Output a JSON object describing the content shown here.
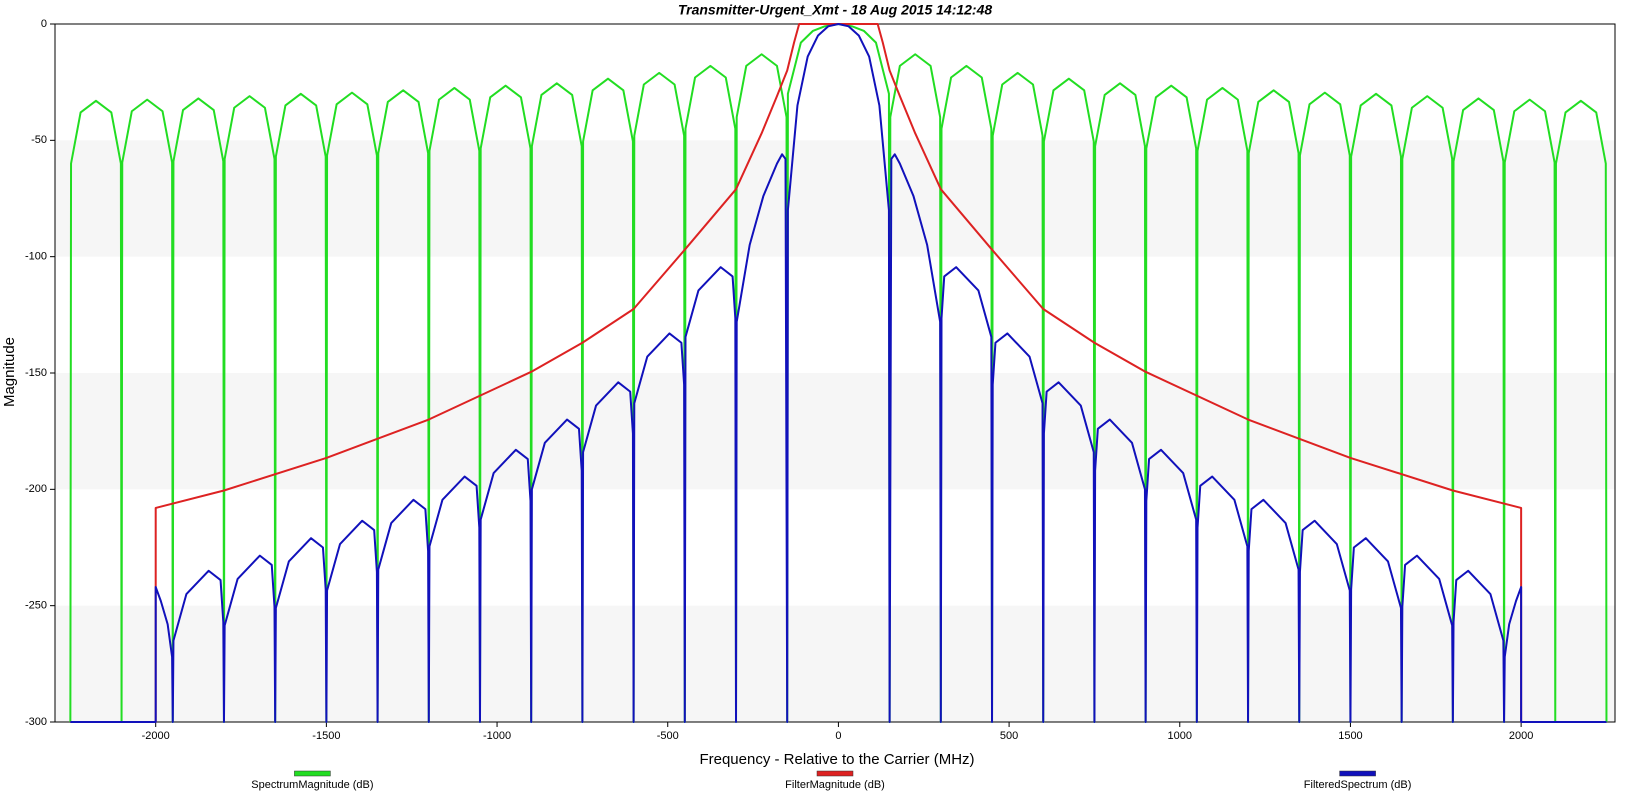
{
  "chart_data": {
    "type": "line",
    "title": "Transmitter-Urgent_Xmt - 18 Aug 2015 14:12:48",
    "x_label": "Frequency - Relative to the Carrier (MHz)",
    "y_label": "Magnitude",
    "xlim": [
      -2295,
      2275
    ],
    "ylim": [
      -300,
      0
    ],
    "xticks": [
      -2000,
      -1500,
      -1000,
      -500,
      0,
      500,
      1000,
      1500,
      2000
    ],
    "yticks": [
      0,
      -50,
      -100,
      -150,
      -200,
      -250,
      -300
    ],
    "grid": "bands",
    "legend": "bottom",
    "series": [
      {
        "name": "SpectrumMagnitude (dB)",
        "color": "#22dd22",
        "x": [
          -2250,
          -2248,
          -2220,
          -2175,
          -2130,
          -2102,
          -2100,
          -2098,
          -2070,
          -2025,
          -1980,
          -1952,
          -1950,
          -1948,
          -1920,
          -1875,
          -1830,
          -1802,
          -1800,
          -1798,
          -1770,
          -1725,
          -1680,
          -1652,
          -1650,
          -1648,
          -1620,
          -1575,
          -1530,
          -1502,
          -1500,
          -1498,
          -1470,
          -1425,
          -1380,
          -1352,
          -1350,
          -1348,
          -1320,
          -1275,
          -1230,
          -1202,
          -1200,
          -1198,
          -1170,
          -1125,
          -1080,
          -1052,
          -1050,
          -1048,
          -1020,
          -975,
          -930,
          -902,
          -900,
          -898,
          -870,
          -825,
          -780,
          -752,
          -750,
          -748,
          -720,
          -675,
          -630,
          -602,
          -600,
          -598,
          -570,
          -525,
          -480,
          -452,
          -450,
          -448,
          -420,
          -375,
          -330,
          -302,
          -300,
          -298,
          -270,
          -225,
          -180,
          -152,
          -150,
          -148,
          -110,
          -75,
          -40,
          0,
          40,
          75,
          110,
          148,
          150,
          152,
          180,
          225,
          270,
          298,
          300,
          302,
          330,
          375,
          420,
          448,
          450,
          452,
          480,
          525,
          570,
          598,
          600,
          602,
          630,
          675,
          720,
          748,
          750,
          752,
          780,
          825,
          870,
          898,
          900,
          902,
          930,
          975,
          1020,
          1048,
          1050,
          1052,
          1080,
          1125,
          1170,
          1198,
          1200,
          1202,
          1230,
          1275,
          1320,
          1348,
          1350,
          1352,
          1380,
          1425,
          1470,
          1498,
          1500,
          1502,
          1530,
          1575,
          1620,
          1648,
          1650,
          1652,
          1680,
          1725,
          1770,
          1798,
          1800,
          1802,
          1830,
          1875,
          1920,
          1948,
          1950,
          1952,
          1980,
          2025,
          2070,
          2098,
          2100,
          2102,
          2130,
          2175,
          2220,
          2248,
          2250
        ],
        "values": [
          -300,
          -60,
          -38,
          -33,
          -38,
          -60,
          -300,
          -59.5,
          -37.5,
          -32.5,
          -37.5,
          -59.5,
          -300,
          -59,
          -37,
          -32,
          -37,
          -59,
          -300,
          -58,
          -36,
          -31,
          -36,
          -58,
          -300,
          -57,
          -35,
          -30,
          -35,
          -57,
          -300,
          -56.5,
          -34.5,
          -29.5,
          -34.5,
          -56.5,
          -300,
          -55.5,
          -33.5,
          -28.5,
          -33.5,
          -55.5,
          -300,
          -54.5,
          -32.5,
          -27.5,
          -32.5,
          -54.5,
          -300,
          -53.5,
          -31.5,
          -26.5,
          -31.5,
          -53.5,
          -300,
          -52.5,
          -30.5,
          -25.5,
          -30.5,
          -52.5,
          -300,
          -50.5,
          -28.5,
          -23.5,
          -28.5,
          -50.5,
          -300,
          -48,
          -26,
          -21,
          -26,
          -48,
          -300,
          -45,
          -23,
          -18,
          -23,
          -45,
          -300,
          -40,
          -18,
          -13,
          -18,
          -40,
          -300,
          -30,
          -8,
          -3,
          -1,
          0,
          -1,
          -3,
          -8,
          -30,
          -300,
          -40,
          -18,
          -13,
          -18,
          -40,
          -300,
          -45,
          -23,
          -18,
          -23,
          -45,
          -300,
          -48,
          -26,
          -21,
          -26,
          -48,
          -300,
          -50.5,
          -28.5,
          -23.5,
          -28.5,
          -50.5,
          -300,
          -52.5,
          -30.5,
          -25.5,
          -30.5,
          -52.5,
          -300,
          -53.5,
          -31.5,
          -26.5,
          -31.5,
          -53.5,
          -300,
          -54.5,
          -32.5,
          -27.5,
          -32.5,
          -54.5,
          -300,
          -55.5,
          -33.5,
          -28.5,
          -33.5,
          -55.5,
          -300,
          -56.5,
          -34.5,
          -29.5,
          -34.5,
          -56.5,
          -300,
          -57,
          -35,
          -30,
          -35,
          -57,
          -300,
          -58,
          -36,
          -31,
          -36,
          -58,
          -300,
          -59,
          -37,
          -32,
          -37,
          -59,
          -300,
          -59.5,
          -37.5,
          -32.5,
          -37.5,
          -59.5,
          -300,
          -60,
          -38,
          -33,
          -38,
          -60,
          -300
        ]
      },
      {
        "name": "FilterMagnitude (dB)",
        "color": "#dd2222",
        "x": [
          -2250,
          -2000,
          -2000,
          -1800,
          -1500,
          -1200,
          -900,
          -750,
          -600,
          -450,
          -300,
          -225,
          -180,
          -150,
          -130,
          -115,
          115,
          130,
          150,
          180,
          225,
          300,
          450,
          600,
          750,
          900,
          1200,
          1500,
          1800,
          2000,
          2000,
          2250
        ],
        "values": [
          -300,
          -300,
          -208,
          -200.5,
          -186.5,
          -170,
          -149.5,
          -137,
          -122.5,
          -97,
          -71,
          -47,
          -31,
          -20,
          -8,
          0,
          0,
          -8,
          -20,
          -31,
          -47,
          -71,
          -97,
          -122.5,
          -137,
          -149.5,
          -170,
          -186.5,
          -200.5,
          -208,
          -300,
          -300
        ]
      },
      {
        "name": "FilteredSpectrum (dB)",
        "color": "#1111bb",
        "x": [
          -2250,
          -2000,
          -2000,
          -1985,
          -1965,
          -1952,
          -1950,
          -1948,
          -1910,
          -1845,
          -1810,
          -1802,
          -1800,
          -1798,
          -1760,
          -1695,
          -1660,
          -1652,
          -1650,
          -1648,
          -1610,
          -1545,
          -1510,
          -1502,
          -1500,
          -1498,
          -1460,
          -1395,
          -1360,
          -1352,
          -1350,
          -1348,
          -1310,
          -1245,
          -1210,
          -1202,
          -1200,
          -1198,
          -1160,
          -1095,
          -1060,
          -1052,
          -1050,
          -1048,
          -1010,
          -945,
          -910,
          -902,
          -900,
          -898,
          -860,
          -795,
          -760,
          -752,
          -750,
          -748,
          -710,
          -645,
          -610,
          -602,
          -600,
          -598,
          -560,
          -495,
          -460,
          -452,
          -450,
          -448,
          -410,
          -345,
          -310,
          -302,
          -300,
          -298,
          -260,
          -220,
          -180,
          -165,
          -155,
          -150,
          -148,
          -120,
          -90,
          -60,
          -30,
          0,
          30,
          60,
          90,
          120,
          148,
          150,
          155,
          165,
          180,
          220,
          260,
          298,
          300,
          302,
          310,
          345,
          410,
          448,
          450,
          452,
          460,
          495,
          560,
          598,
          600,
          602,
          610,
          645,
          710,
          748,
          750,
          752,
          760,
          795,
          860,
          898,
          900,
          902,
          910,
          945,
          1010,
          1048,
          1050,
          1052,
          1060,
          1095,
          1160,
          1198,
          1200,
          1202,
          1210,
          1245,
          1310,
          1348,
          1350,
          1352,
          1360,
          1395,
          1460,
          1498,
          1500,
          1502,
          1510,
          1545,
          1610,
          1648,
          1650,
          1652,
          1660,
          1695,
          1760,
          1798,
          1800,
          1802,
          1810,
          1845,
          1910,
          1948,
          1950,
          1952,
          1965,
          1985,
          2000,
          2000,
          2250
        ],
        "values": [
          -300,
          -300,
          -242,
          -248,
          -258,
          -272,
          -300,
          -265,
          -245,
          -235,
          -239,
          -257,
          -300,
          -258.5,
          -238.5,
          -228.5,
          -232.5,
          -250.5,
          -300,
          -251,
          -231,
          -221,
          -225,
          -243,
          -300,
          -243.5,
          -223.5,
          -213.5,
          -217.5,
          -235.5,
          -300,
          -234.5,
          -214.5,
          -204.5,
          -208.5,
          -226.5,
          -300,
          -224.5,
          -204.5,
          -194.5,
          -198.5,
          -216.5,
          -300,
          -213,
          -193,
          -183,
          -187,
          -205,
          -300,
          -200,
          -180,
          -170,
          -174,
          -192,
          -300,
          -184,
          -164,
          -154,
          -158,
          -176,
          -300,
          -163,
          -143,
          -133,
          -137,
          -155,
          -300,
          -134.5,
          -114.5,
          -104.5,
          -108.5,
          -126.5,
          -300,
          -128,
          -95,
          -74,
          -60,
          -56,
          -58,
          -300,
          -80,
          -35,
          -14,
          -5,
          -1,
          0,
          -1,
          -5,
          -14,
          -35,
          -80,
          -300,
          -58,
          -56,
          -60,
          -74,
          -95,
          -128,
          -300,
          -126.5,
          -108.5,
          -104.5,
          -114.5,
          -134.5,
          -300,
          -155,
          -137,
          -133,
          -143,
          -163,
          -300,
          -176,
          -158,
          -154,
          -164,
          -184,
          -300,
          -192,
          -174,
          -170,
          -180,
          -200,
          -300,
          -205,
          -187,
          -183,
          -193,
          -213,
          -300,
          -216.5,
          -198.5,
          -194.5,
          -204.5,
          -224.5,
          -300,
          -226.5,
          -208.5,
          -204.5,
          -214.5,
          -234.5,
          -300,
          -235.5,
          -217.5,
          -213.5,
          -223.5,
          -243.5,
          -300,
          -243,
          -225,
          -221,
          -231,
          -251,
          -300,
          -250.5,
          -232.5,
          -228.5,
          -238.5,
          -258.5,
          -300,
          -257,
          -239,
          -235,
          -245,
          -265,
          -300,
          -272,
          -258,
          -248,
          -242,
          -300,
          -300
        ]
      }
    ]
  }
}
